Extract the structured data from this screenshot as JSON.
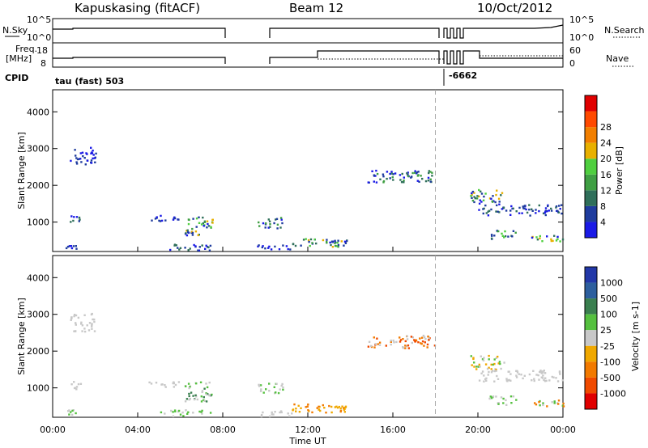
{
  "header": {
    "station": "Kapuskasing (fitACF)",
    "beam": "Beam 12",
    "date": "10/Oct/2012"
  },
  "strip_labels": {
    "nsky": "N.Sky",
    "freq_line1": "Freq.",
    "freq_line2": "[MHz]",
    "cpid": "CPID",
    "nsearch": "N.Search",
    "nave": "Nave",
    "cpid_main": "tau (fast) 503",
    "cpid_alt": "-6662"
  },
  "colors": {
    "power": [
      "#1a1ae6",
      "#1f3c9e",
      "#2f6f5a",
      "#3f9f43",
      "#4fcf3f",
      "#e8b000",
      "#f27f00",
      "#ff4a00",
      "#e00000"
    ],
    "velocity": [
      "#2238a8",
      "#2d5f9e",
      "#3a7f4f",
      "#55c03f",
      "#c8c8c8",
      "#f0a800",
      "#f27a00",
      "#f04a00",
      "#e00000"
    ],
    "dashed_marker": "#aaaaaa"
  },
  "chart_data": [
    {
      "type": "line",
      "panel": "N.Sky / N.Search",
      "y_left_ticks": [
        "10^5",
        "10^0"
      ],
      "y_right_ticks": [
        "10^5",
        "10^0"
      ],
      "gaps_hours": [
        [
          7.5,
          9.5
        ]
      ]
    },
    {
      "type": "line",
      "panel": "Freq / Nave",
      "y_left_ticks": [
        "18",
        "8"
      ],
      "y_right_ticks": [
        "60",
        "0"
      ]
    },
    {
      "type": "heatmap",
      "panel": "Power",
      "ylabel": "Slant Range [km]",
      "yticks": [
        1000,
        2000,
        3000,
        4000
      ],
      "ylim": [
        200,
        4600
      ],
      "xlim": [
        0,
        24
      ],
      "colorbar": {
        "label": "Power [dB]",
        "ticks": [
          4,
          8,
          12,
          16,
          20,
          24,
          28
        ]
      },
      "marker_hour": 18
    },
    {
      "type": "heatmap",
      "panel": "Velocity",
      "ylabel": "Slant Range [km]",
      "yticks": [
        1000,
        2000,
        3000,
        4000
      ],
      "ylim": [
        200,
        4600
      ],
      "xlim": [
        0,
        24
      ],
      "xticks": [
        "00:00",
        "04:00",
        "08:00",
        "12:00",
        "16:00",
        "20:00",
        "00:00"
      ],
      "xlabel": "Time UT",
      "colorbar": {
        "label": "Velocity [m s-1]",
        "ticks": [
          "1000",
          "500",
          "100",
          "25",
          "-25",
          "-100",
          "-500",
          "-1000"
        ]
      },
      "marker_hour": 18
    }
  ],
  "scatter_regions": [
    {
      "h": [
        0.8,
        2.0
      ],
      "r": [
        2550,
        3050
      ],
      "pc": [
        0,
        1
      ],
      "vc": [
        4
      ]
    },
    {
      "h": [
        0.8,
        1.3
      ],
      "r": [
        950,
        1200
      ],
      "pc": [
        0,
        1,
        2
      ],
      "vc": [
        4
      ]
    },
    {
      "h": [
        0.6,
        1.3
      ],
      "r": [
        280,
        420
      ],
      "pc": [
        0,
        1
      ],
      "vc": [
        4,
        3
      ]
    },
    {
      "h": [
        4.4,
        6.2
      ],
      "r": [
        1050,
        1200
      ],
      "pc": [
        0,
        1
      ],
      "vc": [
        4
      ]
    },
    {
      "h": [
        5.0,
        7.4
      ],
      "r": [
        250,
        420
      ],
      "pc": [
        0,
        1,
        2
      ],
      "vc": [
        4,
        3
      ]
    },
    {
      "h": [
        6.2,
        7.5
      ],
      "r": [
        650,
        1200
      ],
      "pc": [
        1,
        2,
        3,
        4,
        5,
        0
      ],
      "vc": [
        4,
        3,
        2
      ]
    },
    {
      "h": [
        9.6,
        10.8
      ],
      "r": [
        850,
        1150
      ],
      "pc": [
        0,
        1,
        2,
        3
      ],
      "vc": [
        4,
        3
      ]
    },
    {
      "h": [
        9.6,
        11.3
      ],
      "r": [
        250,
        400
      ],
      "pc": [
        0,
        1
      ],
      "vc": [
        4
      ]
    },
    {
      "h": [
        11.2,
        13.8
      ],
      "r": [
        350,
        580
      ],
      "pc": [
        1,
        2,
        3,
        4,
        5
      ],
      "vc": [
        5,
        6
      ]
    },
    {
      "h": [
        13.0,
        13.8
      ],
      "r": [
        450,
        520
      ],
      "pc": [
        0,
        1
      ],
      "vc": [
        5
      ]
    },
    {
      "h": [
        14.8,
        18.0
      ],
      "r": [
        2100,
        2450
      ],
      "pc": [
        0,
        1,
        2,
        3
      ],
      "vc": [
        4,
        7,
        6
      ]
    },
    {
      "h": [
        19.6,
        21.2
      ],
      "r": [
        1500,
        1900
      ],
      "pc": [
        0,
        1,
        2,
        3,
        4,
        5
      ],
      "vc": [
        4,
        5,
        3
      ]
    },
    {
      "h": [
        20.0,
        24.0
      ],
      "r": [
        1200,
        1500
      ],
      "pc": [
        0,
        1,
        2
      ],
      "vc": [
        4
      ]
    },
    {
      "h": [
        20.5,
        21.8
      ],
      "r": [
        550,
        800
      ],
      "pc": [
        1,
        2,
        3,
        4
      ],
      "vc": [
        3,
        4
      ]
    },
    {
      "h": [
        22.5,
        24.0
      ],
      "r": [
        500,
        700
      ],
      "pc": [
        0,
        2,
        4,
        5
      ],
      "vc": [
        4,
        6,
        3
      ]
    }
  ]
}
